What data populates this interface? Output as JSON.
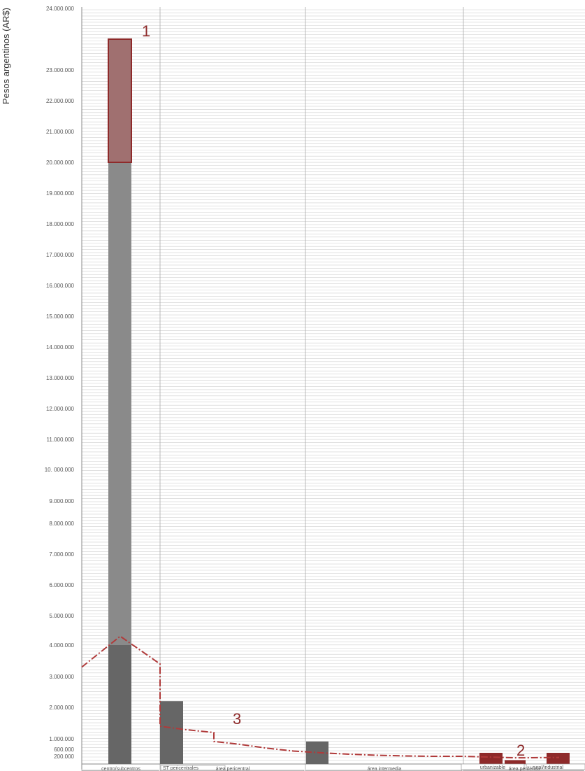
{
  "chart_data": {
    "type": "bar",
    "ylabel": "Pesos argentinos (AR$)",
    "y_ticks": [
      {
        "value": 200000,
        "label": "200.000"
      },
      {
        "value": 600000,
        "label": "600.000"
      },
      {
        "value": 1000000,
        "label": "1.000.000"
      },
      {
        "value": 2000000,
        "label": "2.000.000"
      },
      {
        "value": 3000000,
        "label": "3.000.000"
      },
      {
        "value": 4000000,
        "label": "4.000.000"
      },
      {
        "value": 5000000,
        "label": "5.000.000"
      },
      {
        "value": 6000000,
        "label": "6.000.000"
      },
      {
        "value": 7000000,
        "label": "7.000.000"
      },
      {
        "value": 8000000,
        "label": "8.000.000"
      },
      {
        "value": 9000000,
        "label": "9.000.000"
      },
      {
        "value": 10000000,
        "label": "10. 000.000"
      },
      {
        "value": 11000000,
        "label": "11.000.000"
      },
      {
        "value": 12000000,
        "label": "12.000.000"
      },
      {
        "value": 13000000,
        "label": "13.000.000"
      },
      {
        "value": 14000000,
        "label": "14.000.000"
      },
      {
        "value": 15000000,
        "label": "15.000.000"
      },
      {
        "value": 16000000,
        "label": "16.000.000"
      },
      {
        "value": 17000000,
        "label": "17.000.000"
      },
      {
        "value": 18000000,
        "label": "18.000.000"
      },
      {
        "value": 19000000,
        "label": "19.000.000"
      },
      {
        "value": 20000000,
        "label": "20.000.000"
      },
      {
        "value": 21000000,
        "label": "21.000.000"
      },
      {
        "value": 22000000,
        "label": "22.000.000"
      },
      {
        "value": 23000000,
        "label": "23.000.000"
      },
      {
        "value": 24000000,
        "label": "24.000.000"
      }
    ],
    "ylim": [
      0,
      24000000
    ],
    "grid": true,
    "zones": [
      {
        "label": "centro/subcentros"
      },
      {
        "label": "área pericentral",
        "sublabel": "ST pericentrales"
      },
      {
        "label": "área intermedia"
      },
      {
        "label": "área periférica",
        "sublabels": [
          "urbanizable",
          "rural/industrial"
        ]
      }
    ],
    "bars": [
      {
        "zone": "centro/subcentros",
        "kind": "dark",
        "low": 0,
        "high": 4000000
      },
      {
        "zone": "centro/subcentros",
        "kind": "mid",
        "low": 4000000,
        "high": 20000000
      },
      {
        "zone": "centro/subcentros",
        "kind": "range-highlight",
        "low": 20000000,
        "high": 23500000
      },
      {
        "zone": "área pericentral",
        "kind": "dark",
        "low": 0,
        "high": 2200000
      },
      {
        "zone": "área intermedia",
        "kind": "dark",
        "low": 0,
        "high": 900000
      },
      {
        "zone": "área periférica",
        "kind": "red",
        "low": 0,
        "high": 400000
      },
      {
        "zone": "área periférica",
        "kind": "red",
        "low": 0,
        "high": 100000
      },
      {
        "zone": "área periférica",
        "kind": "red",
        "low": 0,
        "high": 400000
      }
    ],
    "trend_line": [
      {
        "value": 3300000
      },
      {
        "value": 4300000
      },
      {
        "value": 3400000
      },
      {
        "value": 1400000
      },
      {
        "value": 1300000
      },
      {
        "value": 1200000
      },
      {
        "value": 900000
      },
      {
        "value": 800000
      },
      {
        "value": 650000
      },
      {
        "value": 500000
      },
      {
        "value": 400000
      },
      {
        "value": 320000
      },
      {
        "value": 260000
      },
      {
        "value": 220000
      },
      {
        "value": 200000
      },
      {
        "value": 200000
      },
      {
        "value": 180000
      },
      {
        "value": 160000
      },
      {
        "value": 170000
      }
    ],
    "annotations": [
      {
        "label": "1"
      },
      {
        "label": "2"
      },
      {
        "label": "3"
      }
    ],
    "colors": {
      "dark": "#666666",
      "mid": "#8a8a8a",
      "red": "#8e2a2a",
      "highlight_fill": "#a07070",
      "trend": "#b03a3a",
      "grid_minor": "#cfcfcf",
      "grid_major": "#aaaaaa"
    }
  }
}
